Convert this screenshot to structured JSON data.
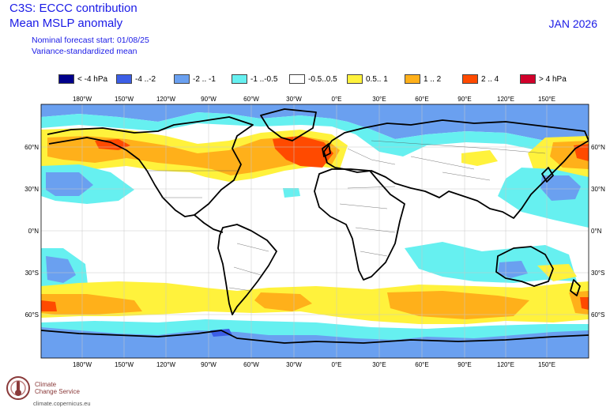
{
  "header": {
    "title_line1": "C3S: ECCC contribution",
    "title_line2": "Mean MSLP anomaly",
    "forecast_start": "Nominal forecast start: 01/08/25",
    "variance_note": "Variance-standardized mean",
    "valid_month": "JAN 2026"
  },
  "legend": [
    {
      "label": "< -4 hPa",
      "color": "#00008b"
    },
    {
      "label": "-4 ..-2",
      "color": "#3c5ee6"
    },
    {
      "label": "-2 .. -1",
      "color": "#6aa0f0"
    },
    {
      "label": "-1 ..-0.5",
      "color": "#66f0f0"
    },
    {
      "label": "-0.5..0.5",
      "color": "#ffffff"
    },
    {
      "label": "0.5.. 1",
      "color": "#fff23c"
    },
    {
      "label": "1 .. 2",
      "color": "#ffb01a"
    },
    {
      "label": "2 .. 4",
      "color": "#ff4a00"
    },
    {
      "label": "> 4 hPa",
      "color": "#d0002a"
    }
  ],
  "axes": {
    "lon_top": [
      "180°W",
      "150°W",
      "120°W",
      "90°W",
      "60°W",
      "30°W",
      "0°E",
      "30°E",
      "60°E",
      "90°E",
      "120°E",
      "150°E"
    ],
    "lon_bottom": [
      "180°W",
      "150°W",
      "120°W",
      "90°W",
      "60°W",
      "30°W",
      "0°E",
      "30°E",
      "60°E",
      "90°E",
      "120°E",
      "150°E"
    ],
    "lat_left": [
      "60°N",
      "30°N",
      "0°N",
      "30°S",
      "60°S"
    ],
    "lat_right": [
      "60°N",
      "30°N",
      "0°N",
      "30°S",
      "60°S"
    ]
  },
  "logo": {
    "line1": "Climate",
    "line2": "Change Service",
    "url": "climate.copernicus.eu"
  }
}
